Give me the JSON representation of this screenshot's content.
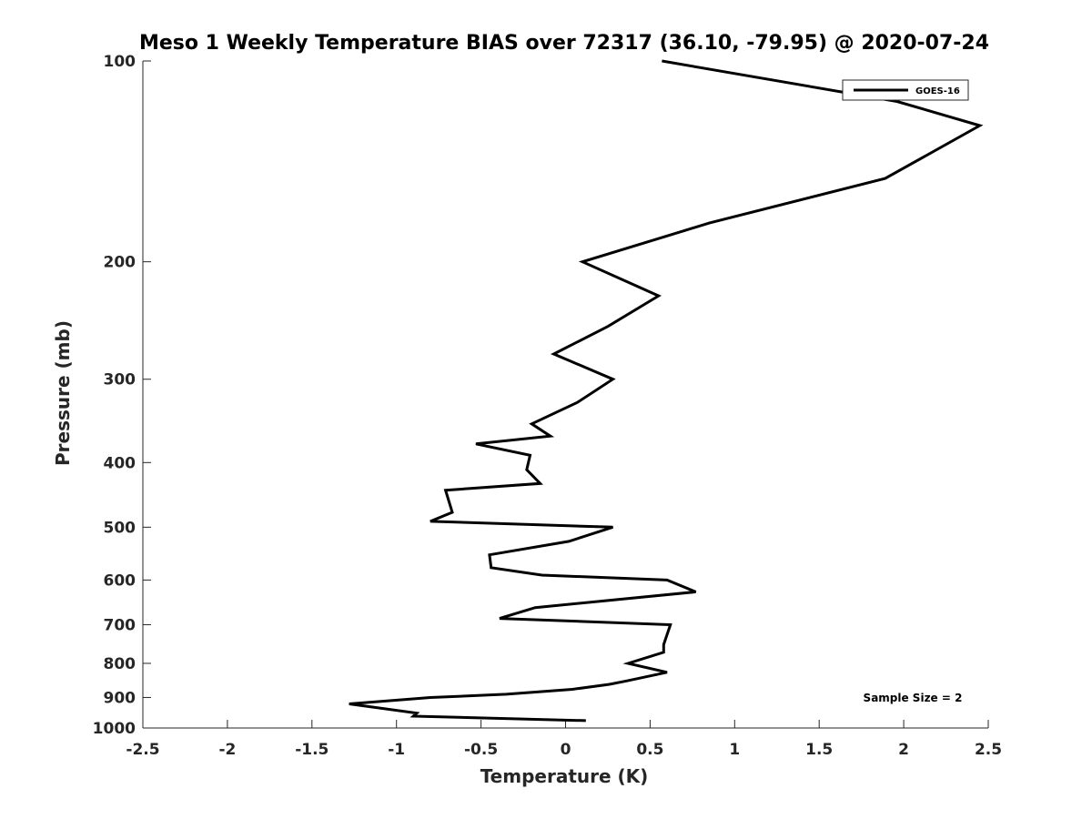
{
  "chart_data": {
    "type": "line",
    "title": "Meso 1 Weekly Temperature BIAS over 72317 (36.10, -79.95) @ 2020-07-24",
    "xlabel": "Temperature (K)",
    "ylabel": "Pressure (mb)",
    "xlim": [
      -2.5,
      2.5
    ],
    "ylim": [
      100,
      1000
    ],
    "y_scale": "log",
    "y_direction": "reverse",
    "grid": false,
    "legend_position": "top-right",
    "x_ticks": [
      -2.5,
      -2,
      -1.5,
      -1,
      -0.5,
      0,
      0.5,
      1,
      1.5,
      2,
      2.5
    ],
    "x_tick_labels": [
      "-2.5",
      "-2",
      "-1.5",
      "-1",
      "-0.5",
      "0",
      "0.5",
      "1",
      "1.5",
      "2",
      "2.5"
    ],
    "y_ticks": [
      100,
      200,
      300,
      400,
      500,
      600,
      700,
      800,
      900,
      1000
    ],
    "y_tick_labels": [
      "100",
      "200",
      "300",
      "400",
      "500",
      "600",
      "700",
      "800",
      "900",
      "1000"
    ],
    "series": [
      {
        "name": "GOES-16",
        "color": "#000000",
        "x": [
          0.57,
          1.96,
          2.45,
          1.89,
          0.85,
          0.1,
          0.55,
          0.25,
          -0.07,
          0.28,
          0.07,
          -0.2,
          -0.09,
          -0.53,
          -0.21,
          -0.23,
          -0.15,
          -0.71,
          -0.67,
          -0.8,
          0.28,
          0.02,
          -0.45,
          -0.44,
          -0.14,
          0.6,
          0.77,
          -0.18,
          -0.39,
          0.62,
          0.58,
          0.58,
          0.37,
          0.6,
          0.36,
          0.26,
          0.04,
          -0.35,
          -0.8,
          -1.28,
          -0.88,
          -0.9,
          0.12
        ],
        "y": [
          100,
          115,
          125,
          150,
          175,
          200,
          225,
          250,
          275,
          300,
          325,
          350,
          365,
          375,
          390,
          410,
          430,
          440,
          475,
          490,
          500,
          525,
          550,
          575,
          590,
          600,
          625,
          660,
          685,
          700,
          750,
          770,
          800,
          825,
          850,
          860,
          875,
          890,
          900,
          920,
          950,
          960,
          975
        ]
      }
    ],
    "annotations": [
      "Sample Size = 2"
    ]
  }
}
